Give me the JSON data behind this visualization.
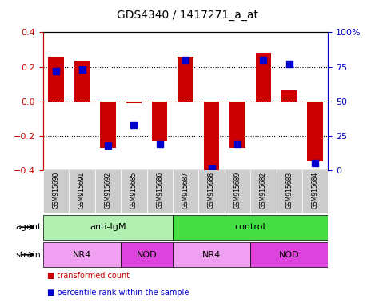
{
  "title": "GDS4340 / 1417271_a_at",
  "samples": [
    "GSM915690",
    "GSM915691",
    "GSM915692",
    "GSM915685",
    "GSM915686",
    "GSM915687",
    "GSM915688",
    "GSM915689",
    "GSM915682",
    "GSM915683",
    "GSM915684"
  ],
  "bar_values": [
    0.26,
    0.235,
    -0.27,
    -0.01,
    -0.23,
    0.26,
    -0.41,
    -0.27,
    0.28,
    0.065,
    -0.35
  ],
  "percentile_values": [
    72,
    73,
    18,
    33,
    19,
    80,
    1,
    19,
    80,
    77,
    5
  ],
  "bar_color": "#cc0000",
  "dot_color": "#0000cc",
  "ylim": [
    -0.4,
    0.4
  ],
  "y2lim": [
    0,
    100
  ],
  "yticks": [
    -0.4,
    -0.2,
    0.0,
    0.2,
    0.4
  ],
  "y2ticks": [
    0,
    25,
    50,
    75,
    100
  ],
  "y2ticklabels": [
    "0",
    "25",
    "50",
    "75",
    "100%"
  ],
  "hlines": [
    -0.2,
    0.0,
    0.2
  ],
  "agent_groups": [
    {
      "label": "anti-IgM",
      "start": 0,
      "end": 5,
      "color": "#b2f0b2"
    },
    {
      "label": "control",
      "start": 5,
      "end": 11,
      "color": "#44dd44"
    }
  ],
  "strain_groups": [
    {
      "label": "NR4",
      "start": 0,
      "end": 3,
      "color": "#f0a0f0"
    },
    {
      "label": "NOD",
      "start": 3,
      "end": 5,
      "color": "#dd44dd"
    },
    {
      "label": "NR4",
      "start": 5,
      "end": 8,
      "color": "#f0a0f0"
    },
    {
      "label": "NOD",
      "start": 8,
      "end": 11,
      "color": "#dd44dd"
    }
  ],
  "legend_items": [
    {
      "label": "transformed count",
      "color": "#cc0000"
    },
    {
      "label": "percentile rank within the sample",
      "color": "#0000cc"
    }
  ],
  "bar_width": 0.6,
  "dot_size": 28,
  "title_fontsize": 10,
  "tick_fontsize": 8,
  "agent_label": "agent",
  "strain_label": "strain",
  "zero_line_color": "#cc0000",
  "grid_color": "black",
  "sample_bg_color": "#cccccc",
  "plot_bg_color": "white"
}
